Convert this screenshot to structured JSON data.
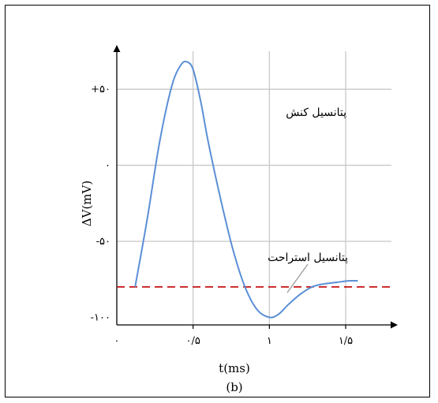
{
  "chart_data": {
    "type": "line",
    "title": "",
    "caption": "(b)",
    "xlabel": "t(ms)",
    "ylabel": "ΔV(mV)",
    "xlim": [
      0,
      1.8
    ],
    "ylim": [
      -105,
      75
    ],
    "grid": true,
    "x_ticks": [
      0,
      0.5,
      1,
      1.5
    ],
    "x_tick_labels": [
      "۰",
      "۰/۵",
      "۱",
      "۱/۵"
    ],
    "y_ticks": [
      50,
      0,
      -50,
      -100
    ],
    "y_tick_labels": [
      "+۵۰",
      "۰",
      "-۵۰",
      "-۱۰۰"
    ],
    "series": [
      {
        "color": "#5b8fd6",
        "x": [
          0.12,
          0.2,
          0.28,
          0.36,
          0.42,
          0.46,
          0.5,
          0.55,
          0.6,
          0.68,
          0.76,
          0.84,
          0.92,
          1.0,
          1.06,
          1.12,
          1.2,
          1.28,
          1.36,
          1.44,
          1.52,
          1.58
        ],
        "y": [
          -80,
          -35,
          15,
          52,
          66,
          68,
          63,
          42,
          15,
          -22,
          -55,
          -80,
          -95,
          -100,
          -98,
          -92,
          -85,
          -80,
          -78,
          -77,
          -76,
          -76
        ]
      }
    ],
    "reference_lines": [
      {
        "y": -80,
        "color": "#c00000",
        "style": "dashed",
        "label": "پتانسیل استراحت"
      }
    ],
    "annotations": [
      {
        "text": "پتانسیل کنش"
      },
      {
        "text": "پتانسیل استراحت"
      }
    ]
  }
}
